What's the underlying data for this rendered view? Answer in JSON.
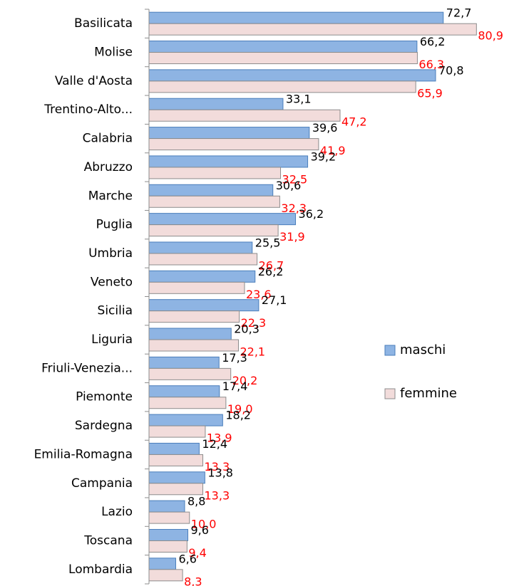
{
  "chart_data": {
    "type": "hbar",
    "categories": [
      "Basilicata",
      "Molise",
      "Valle d'Aosta",
      "Trentino-Alto...",
      "Calabria",
      "Abruzzo",
      "Marche",
      "Puglia",
      "Umbria",
      "Veneto",
      "Sicilia",
      "Liguria",
      "Friuli-Venezia...",
      "Piemonte",
      "Sardegna",
      "Emilia-Romagna",
      "Campania",
      "Lazio",
      "Toscana",
      "Lombardia"
    ],
    "series": [
      {
        "name": "maschi",
        "color": "#8eb4e3",
        "stroke": "#4a7ebb",
        "label_color": "#000000",
        "values": [
          72.7,
          66.2,
          70.8,
          33.1,
          39.6,
          39.2,
          30.6,
          36.2,
          25.5,
          26.2,
          27.1,
          20.3,
          17.3,
          17.4,
          18.2,
          12.4,
          13.8,
          8.8,
          9.6,
          6.6
        ],
        "value_labels": [
          "72,7",
          "66,2",
          "70,8",
          "33,1",
          "39,6",
          "39,2",
          "30,6",
          "36,2",
          "25,5",
          "26,2",
          "27,1",
          "20,3",
          "17,3",
          "17,4",
          "18,2",
          "12,4",
          "13,8",
          "8,8",
          "9,6",
          "6,6"
        ]
      },
      {
        "name": "femmine",
        "color": "#f2dcdb",
        "stroke": "#8c8c8c",
        "label_color": "#ff0000",
        "values": [
          80.9,
          66.3,
          65.9,
          47.2,
          41.9,
          32.5,
          32.3,
          31.9,
          26.7,
          23.6,
          22.3,
          22.1,
          20.2,
          19.0,
          13.9,
          13.3,
          13.3,
          10.0,
          9.4,
          8.3
        ],
        "value_labels": [
          "80,9",
          "66,3",
          "65,9",
          "47,2",
          "41,9",
          "32,5",
          "32,3",
          "31,9",
          "26,7",
          "23,6",
          "22,3",
          "22,1",
          "20,2",
          "19,0",
          "13,9",
          "13,3",
          "13,3",
          "10,0",
          "9,4",
          "8,3"
        ]
      }
    ],
    "xlim": [
      0,
      90
    ],
    "legend": "right"
  }
}
